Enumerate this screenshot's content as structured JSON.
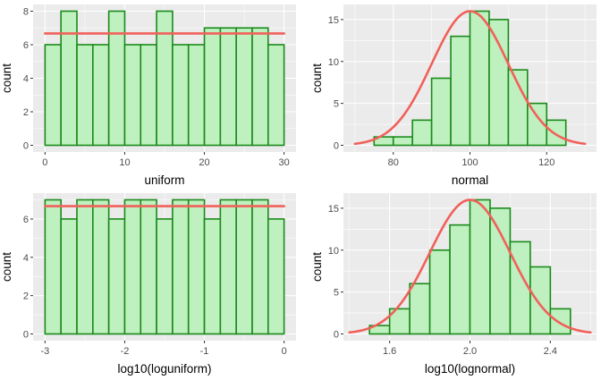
{
  "chart_data": [
    {
      "type": "bar",
      "xlabel": "uniform",
      "ylabel": "count",
      "xlim": [
        -1.5,
        31.5
      ],
      "ylim": [
        -0.4,
        8.4
      ],
      "xticks": [
        {
          "v": 0,
          "label": "0"
        },
        {
          "v": 10,
          "label": "10"
        },
        {
          "v": 20,
          "label": "20"
        },
        {
          "v": 30,
          "label": "30"
        }
      ],
      "yticks": [
        {
          "v": 0,
          "label": "0"
        },
        {
          "v": 2,
          "label": "2"
        },
        {
          "v": 4,
          "label": "4"
        },
        {
          "v": 6,
          "label": "6"
        },
        {
          "v": 8,
          "label": "8"
        }
      ],
      "bin_edges": [
        0,
        2,
        4,
        6,
        8,
        10,
        12,
        14,
        16,
        18,
        20,
        22,
        24,
        26,
        28,
        30
      ],
      "counts": [
        6,
        8,
        6,
        6,
        8,
        6,
        6,
        8,
        6,
        6,
        7,
        7,
        7,
        7,
        6
      ],
      "density_line": {
        "x": [
          0,
          30
        ],
        "y": [
          6.67,
          6.67
        ]
      }
    },
    {
      "type": "bar",
      "xlabel": "normal",
      "ylabel": "count",
      "xlim": [
        67,
        133
      ],
      "ylim": [
        -0.8,
        16.8
      ],
      "xticks": [
        {
          "v": 80,
          "label": "80"
        },
        {
          "v": 100,
          "label": "100"
        },
        {
          "v": 120,
          "label": "120"
        }
      ],
      "yticks": [
        {
          "v": 0,
          "label": "0"
        },
        {
          "v": 5,
          "label": "5"
        },
        {
          "v": 10,
          "label": "10"
        },
        {
          "v": 15,
          "label": "15"
        }
      ],
      "bin_edges": [
        75,
        80,
        85,
        90,
        95,
        100,
        105,
        110,
        115,
        120,
        125
      ],
      "counts": [
        1,
        1,
        3,
        8,
        13,
        16,
        15,
        9,
        5,
        3
      ],
      "density_line": {
        "mean": 100,
        "sd": 10,
        "scale": 16,
        "from": 70,
        "to": 130
      }
    },
    {
      "type": "bar",
      "xlabel": "log10(loguniform)",
      "ylabel": "count",
      "xlim": [
        -3.15,
        0.15
      ],
      "ylim": [
        -0.35,
        7.35
      ],
      "xticks": [
        {
          "v": -3,
          "label": "-3"
        },
        {
          "v": -2,
          "label": "-2"
        },
        {
          "v": -1,
          "label": "-1"
        },
        {
          "v": 0,
          "label": "0"
        }
      ],
      "yticks": [
        {
          "v": 0,
          "label": "0"
        },
        {
          "v": 2,
          "label": "2"
        },
        {
          "v": 4,
          "label": "4"
        },
        {
          "v": 6,
          "label": "6"
        }
      ],
      "bin_edges": [
        -3,
        -2.8,
        -2.6,
        -2.4,
        -2.2,
        -2,
        -1.8,
        -1.6,
        -1.4,
        -1.2,
        -1,
        -0.8,
        -0.6,
        -0.4,
        -0.2,
        0
      ],
      "counts": [
        7,
        6,
        7,
        7,
        6,
        7,
        7,
        6,
        7,
        7,
        6,
        7,
        7,
        7,
        6
      ],
      "density_line": {
        "x": [
          -3,
          0
        ],
        "y": [
          6.67,
          6.67
        ]
      }
    },
    {
      "type": "bar",
      "xlabel": "log10(lognormal)",
      "ylabel": "count",
      "xlim": [
        1.37,
        2.63
      ],
      "ylim": [
        -0.8,
        16.8
      ],
      "xticks": [
        {
          "v": 1.6,
          "label": "1.6"
        },
        {
          "v": 2.0,
          "label": "2.0"
        },
        {
          "v": 2.4,
          "label": "2.4"
        }
      ],
      "yticks": [
        {
          "v": 0,
          "label": "0"
        },
        {
          "v": 5,
          "label": "5"
        },
        {
          "v": 10,
          "label": "10"
        },
        {
          "v": 15,
          "label": "15"
        }
      ],
      "bin_edges": [
        1.5,
        1.6,
        1.7,
        1.8,
        1.9,
        2.0,
        2.1,
        2.2,
        2.3,
        2.4,
        2.5
      ],
      "counts": [
        1,
        3,
        6,
        10,
        13,
        16,
        15,
        11,
        8,
        3
      ],
      "density_line": {
        "mean": 2.0,
        "sd": 0.2,
        "scale": 16,
        "from": 1.4,
        "to": 2.6
      }
    }
  ]
}
